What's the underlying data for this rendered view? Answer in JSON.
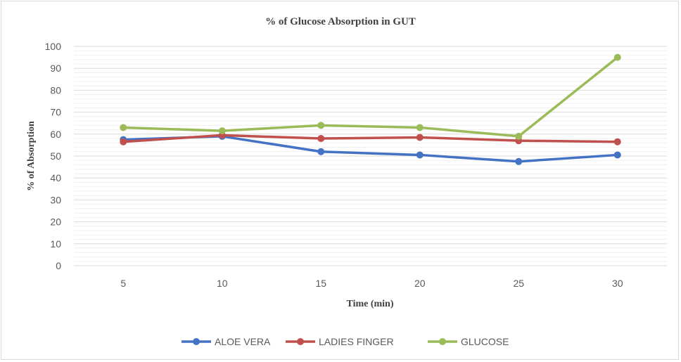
{
  "chart_data": {
    "type": "line",
    "title": "% of Glucose Absorption in GUT",
    "xlabel": "Time (min)",
    "ylabel": "% of Absorption",
    "categories": [
      "5",
      "10",
      "15",
      "20",
      "25",
      "30"
    ],
    "ylim": [
      0,
      100
    ],
    "yticks": [
      "0",
      "10",
      "20",
      "30",
      "40",
      "50",
      "60",
      "70",
      "80",
      "90",
      "100"
    ],
    "grid": true,
    "legend_position": "bottom",
    "series": [
      {
        "name": "ALOE VERA",
        "color": "#4472c4",
        "values": [
          57.5,
          59,
          52,
          50.5,
          47.5,
          50.5
        ]
      },
      {
        "name": "LADIES FINGER",
        "color": "#c0504d",
        "values": [
          56.5,
          59.5,
          58,
          58.5,
          57,
          56.5
        ]
      },
      {
        "name": "GLUCOSE",
        "color": "#9bbb59",
        "values": [
          63,
          61.5,
          64,
          63,
          59,
          95
        ]
      }
    ]
  }
}
